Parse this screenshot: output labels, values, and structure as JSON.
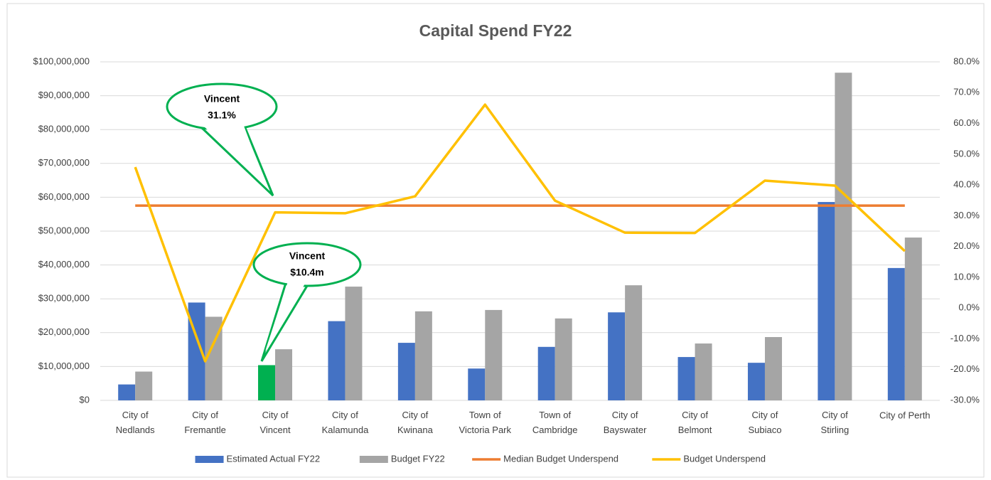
{
  "chart_data": {
    "type": "bar",
    "title": "Capital Spend FY22",
    "categories": [
      "City of Nedlands",
      "City of Fremantle",
      "City of Vincent",
      "City of Kalamunda",
      "City of Kwinana",
      "Town of Victoria Park",
      "Town of Cambridge",
      "City of Bayswater",
      "City of Belmont",
      "City of Subiaco",
      "City of Stirling",
      "City of Perth"
    ],
    "series": [
      {
        "name": "Estimated Actual FY22",
        "type": "bar",
        "color": "#4472c4",
        "point_colors": [
          "#4472c4",
          "#4472c4",
          "#00b050",
          "#4472c4",
          "#4472c4",
          "#4472c4",
          "#4472c4",
          "#4472c4",
          "#4472c4",
          "#4472c4",
          "#4472c4",
          "#4472c4"
        ],
        "values": [
          4700000,
          28900000,
          10400000,
          23400000,
          17000000,
          9400000,
          15800000,
          26000000,
          12800000,
          11100000,
          58600000,
          39100000
        ]
      },
      {
        "name": "Budget FY22",
        "type": "bar",
        "color": "#a5a5a5",
        "values": [
          8500000,
          24700000,
          15100000,
          33600000,
          26300000,
          26700000,
          24200000,
          34000000,
          16800000,
          18700000,
          96800000,
          48100000
        ]
      },
      {
        "name": "Median Budget Underspend",
        "type": "line",
        "axis": "y2",
        "color": "#ed7d31",
        "values": [
          33.3,
          33.3,
          33.3,
          33.3,
          33.3,
          33.3,
          33.3,
          33.3,
          33.3,
          33.3,
          33.3,
          33.3
        ]
      },
      {
        "name": "Budget Underspend",
        "type": "line",
        "axis": "y2",
        "color": "#ffc000",
        "values": [
          45.8,
          -17.3,
          31.1,
          30.8,
          36.3,
          66.1,
          34.9,
          24.5,
          24.4,
          41.4,
          39.8,
          18.5
        ]
      }
    ],
    "ylim": [
      0,
      100000000
    ],
    "yticks": [
      {
        "value": 0,
        "label": "$0"
      },
      {
        "value": 10000000,
        "label": "$10,000,000"
      },
      {
        "value": 20000000,
        "label": "$20,000,000"
      },
      {
        "value": 30000000,
        "label": "$30,000,000"
      },
      {
        "value": 40000000,
        "label": "$40,000,000"
      },
      {
        "value": 50000000,
        "label": "$50,000,000"
      },
      {
        "value": 60000000,
        "label": "$60,000,000"
      },
      {
        "value": 70000000,
        "label": "$70,000,000"
      },
      {
        "value": 80000000,
        "label": "$80,000,000"
      },
      {
        "value": 90000000,
        "label": "$90,000,000"
      },
      {
        "value": 100000000,
        "label": "$100,000,000"
      }
    ],
    "y2lim": [
      -30,
      80
    ],
    "y2ticks": [
      {
        "value": -30,
        "label": "-30.0%"
      },
      {
        "value": -20,
        "label": "-20.0%"
      },
      {
        "value": -10,
        "label": "-10.0%"
      },
      {
        "value": 0,
        "label": "0.0%"
      },
      {
        "value": 10,
        "label": "10.0%"
      },
      {
        "value": 20,
        "label": "20.0%"
      },
      {
        "value": 30,
        "label": "30.0%"
      },
      {
        "value": 40,
        "label": "40.0%"
      },
      {
        "value": 50,
        "label": "50.0%"
      },
      {
        "value": 60,
        "label": "60.0%"
      },
      {
        "value": 70,
        "label": "70.0%"
      },
      {
        "value": 80,
        "label": "80.0%"
      }
    ],
    "grid": true,
    "legend": "bottom",
    "annotations": [
      {
        "lines": [
          "Vincent",
          "31.1%"
        ]
      },
      {
        "lines": [
          "Vincent",
          "$10.4m"
        ]
      }
    ]
  }
}
